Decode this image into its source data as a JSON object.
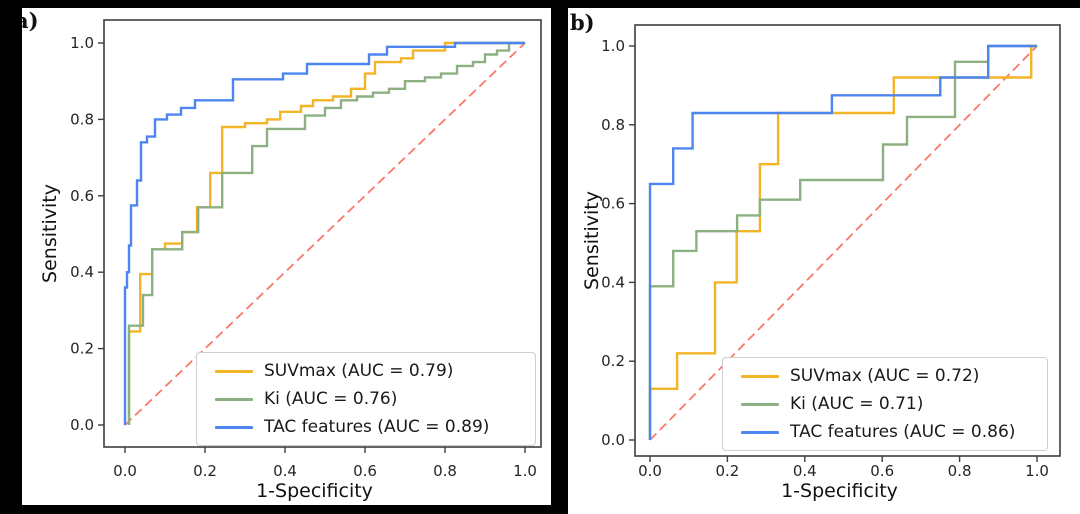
{
  "canvas": {
    "background": "#000000",
    "panel_background": "#ffffff",
    "spine_color": "#3d3d3d",
    "tick_text_color": "#262626"
  },
  "chart_data": [
    {
      "type": "line",
      "panel_label": "a)",
      "xlabel": "1-Specificity",
      "ylabel": "Sensitivity",
      "xlim": [
        0,
        1
      ],
      "ylim": [
        0,
        1
      ],
      "grid": false,
      "legend_position": "lower right",
      "xtick_labels": [
        "0.0",
        "0.2",
        "0.4",
        "0.6",
        "0.8",
        "1.0"
      ],
      "ytick_labels": [
        "0.0",
        "0.2",
        "0.4",
        "0.6",
        "0.8",
        "1.0"
      ],
      "diagonal": {
        "name": "chance-line",
        "color": "#FA7869",
        "style": "dashed",
        "from": [
          0,
          0
        ],
        "to": [
          1,
          1
        ]
      },
      "series": [
        {
          "name": "SUVmax",
          "auc": 0.79,
          "legend_label": "SUVmax (AUC = 0.79)",
          "color": "#F3B426",
          "points": [
            [
              0.01,
              0
            ],
            [
              0.01,
              0.245
            ],
            [
              0.038,
              0.245
            ],
            [
              0.038,
              0.395
            ],
            [
              0.068,
              0.395
            ],
            [
              0.068,
              0.46
            ],
            [
              0.1,
              0.46
            ],
            [
              0.1,
              0.475
            ],
            [
              0.143,
              0.475
            ],
            [
              0.143,
              0.505
            ],
            [
              0.18,
              0.505
            ],
            [
              0.18,
              0.57
            ],
            [
              0.213,
              0.57
            ],
            [
              0.213,
              0.66
            ],
            [
              0.243,
              0.66
            ],
            [
              0.243,
              0.78
            ],
            [
              0.3,
              0.78
            ],
            [
              0.3,
              0.79
            ],
            [
              0.355,
              0.79
            ],
            [
              0.355,
              0.8
            ],
            [
              0.388,
              0.8
            ],
            [
              0.388,
              0.82
            ],
            [
              0.44,
              0.82
            ],
            [
              0.44,
              0.835
            ],
            [
              0.47,
              0.835
            ],
            [
              0.47,
              0.85
            ],
            [
              0.52,
              0.85
            ],
            [
              0.52,
              0.86
            ],
            [
              0.565,
              0.86
            ],
            [
              0.565,
              0.88
            ],
            [
              0.6,
              0.88
            ],
            [
              0.6,
              0.92
            ],
            [
              0.625,
              0.92
            ],
            [
              0.625,
              0.95
            ],
            [
              0.69,
              0.95
            ],
            [
              0.69,
              0.96
            ],
            [
              0.72,
              0.96
            ],
            [
              0.72,
              0.98
            ],
            [
              0.8,
              0.98
            ],
            [
              0.8,
              1.0
            ],
            [
              1,
              1
            ]
          ]
        },
        {
          "name": "Ki",
          "auc": 0.76,
          "legend_label": "Ki (AUC = 0.76)",
          "color": "#8CB082",
          "points": [
            [
              0.01,
              0
            ],
            [
              0.01,
              0.26
            ],
            [
              0.045,
              0.26
            ],
            [
              0.045,
              0.34
            ],
            [
              0.068,
              0.34
            ],
            [
              0.068,
              0.46
            ],
            [
              0.143,
              0.46
            ],
            [
              0.143,
              0.505
            ],
            [
              0.183,
              0.505
            ],
            [
              0.183,
              0.57
            ],
            [
              0.243,
              0.57
            ],
            [
              0.243,
              0.66
            ],
            [
              0.318,
              0.66
            ],
            [
              0.318,
              0.73
            ],
            [
              0.355,
              0.73
            ],
            [
              0.355,
              0.775
            ],
            [
              0.45,
              0.775
            ],
            [
              0.45,
              0.81
            ],
            [
              0.5,
              0.81
            ],
            [
              0.5,
              0.83
            ],
            [
              0.54,
              0.83
            ],
            [
              0.54,
              0.85
            ],
            [
              0.58,
              0.85
            ],
            [
              0.58,
              0.86
            ],
            [
              0.62,
              0.86
            ],
            [
              0.62,
              0.87
            ],
            [
              0.66,
              0.87
            ],
            [
              0.66,
              0.88
            ],
            [
              0.7,
              0.88
            ],
            [
              0.7,
              0.9
            ],
            [
              0.75,
              0.9
            ],
            [
              0.75,
              0.91
            ],
            [
              0.79,
              0.91
            ],
            [
              0.79,
              0.92
            ],
            [
              0.83,
              0.92
            ],
            [
              0.83,
              0.94
            ],
            [
              0.87,
              0.94
            ],
            [
              0.87,
              0.95
            ],
            [
              0.9,
              0.95
            ],
            [
              0.9,
              0.97
            ],
            [
              0.93,
              0.97
            ],
            [
              0.93,
              0.98
            ],
            [
              0.96,
              0.98
            ],
            [
              0.96,
              1.0
            ],
            [
              1,
              1
            ]
          ]
        },
        {
          "name": "TAC features",
          "auc": 0.89,
          "legend_label": "TAC features (AUC = 0.89)",
          "color": "#4D86F0",
          "points": [
            [
              0,
              0
            ],
            [
              0,
              0.36
            ],
            [
              0.005,
              0.36
            ],
            [
              0.005,
              0.4
            ],
            [
              0.01,
              0.4
            ],
            [
              0.01,
              0.47
            ],
            [
              0.015,
              0.47
            ],
            [
              0.015,
              0.575
            ],
            [
              0.03,
              0.575
            ],
            [
              0.03,
              0.64
            ],
            [
              0.04,
              0.64
            ],
            [
              0.04,
              0.74
            ],
            [
              0.055,
              0.74
            ],
            [
              0.055,
              0.755
            ],
            [
              0.075,
              0.755
            ],
            [
              0.075,
              0.8
            ],
            [
              0.105,
              0.8
            ],
            [
              0.105,
              0.8125
            ],
            [
              0.14,
              0.8125
            ],
            [
              0.14,
              0.83
            ],
            [
              0.175,
              0.83
            ],
            [
              0.175,
              0.85
            ],
            [
              0.27,
              0.85
            ],
            [
              0.27,
              0.905
            ],
            [
              0.395,
              0.905
            ],
            [
              0.395,
              0.92
            ],
            [
              0.455,
              0.92
            ],
            [
              0.455,
              0.945
            ],
            [
              0.61,
              0.945
            ],
            [
              0.61,
              0.97
            ],
            [
              0.655,
              0.97
            ],
            [
              0.655,
              0.99
            ],
            [
              0.825,
              0.99
            ],
            [
              0.825,
              1.0
            ],
            [
              1,
              1
            ]
          ]
        }
      ]
    },
    {
      "type": "line",
      "panel_label": "b)",
      "xlabel": "1-Specificity",
      "ylabel": "Sensitivity",
      "xlim": [
        0,
        1
      ],
      "ylim": [
        0,
        1
      ],
      "grid": false,
      "legend_position": "lower right",
      "xtick_labels": [
        "0.0",
        "0.2",
        "0.4",
        "0.6",
        "0.8",
        "1.0"
      ],
      "ytick_labels": [
        "0.0",
        "0.2",
        "0.4",
        "0.6",
        "0.8",
        "1.0"
      ],
      "diagonal": {
        "name": "chance-line",
        "color": "#FA7869",
        "style": "dashed",
        "from": [
          0,
          0
        ],
        "to": [
          1,
          1
        ]
      },
      "series": [
        {
          "name": "SUVmax",
          "auc": 0.72,
          "legend_label": "SUVmax (AUC = 0.72)",
          "color": "#F3B426",
          "points": [
            [
              0,
              0
            ],
            [
              0,
              0.13
            ],
            [
              0.07,
              0.13
            ],
            [
              0.07,
              0.22
            ],
            [
              0.168,
              0.22
            ],
            [
              0.168,
              0.4
            ],
            [
              0.224,
              0.4
            ],
            [
              0.224,
              0.53
            ],
            [
              0.284,
              0.53
            ],
            [
              0.284,
              0.7
            ],
            [
              0.331,
              0.7
            ],
            [
              0.331,
              0.83
            ],
            [
              0.63,
              0.83
            ],
            [
              0.63,
              0.92
            ],
            [
              0.985,
              0.92
            ],
            [
              0.985,
              1.0
            ],
            [
              1,
              1
            ]
          ]
        },
        {
          "name": "Ki",
          "auc": 0.71,
          "legend_label": "Ki (AUC = 0.71)",
          "color": "#8CB082",
          "points": [
            [
              0,
              0
            ],
            [
              0,
              0.39
            ],
            [
              0.06,
              0.39
            ],
            [
              0.06,
              0.48
            ],
            [
              0.12,
              0.48
            ],
            [
              0.12,
              0.53
            ],
            [
              0.225,
              0.53
            ],
            [
              0.225,
              0.57
            ],
            [
              0.284,
              0.57
            ],
            [
              0.284,
              0.61
            ],
            [
              0.388,
              0.61
            ],
            [
              0.388,
              0.66
            ],
            [
              0.602,
              0.66
            ],
            [
              0.602,
              0.75
            ],
            [
              0.664,
              0.75
            ],
            [
              0.664,
              0.82
            ],
            [
              0.788,
              0.82
            ],
            [
              0.788,
              0.96
            ],
            [
              0.874,
              0.96
            ],
            [
              0.874,
              1.0
            ],
            [
              1,
              1
            ]
          ]
        },
        {
          "name": "TAC features",
          "auc": 0.86,
          "legend_label": "TAC features (AUC = 0.86)",
          "color": "#4D86F0",
          "points": [
            [
              0,
              0
            ],
            [
              0,
              0.65
            ],
            [
              0.06,
              0.65
            ],
            [
              0.06,
              0.74
            ],
            [
              0.11,
              0.74
            ],
            [
              0.11,
              0.83
            ],
            [
              0.47,
              0.83
            ],
            [
              0.47,
              0.875
            ],
            [
              0.75,
              0.875
            ],
            [
              0.75,
              0.92
            ],
            [
              0.874,
              0.92
            ],
            [
              0.874,
              1.0
            ],
            [
              1,
              1
            ]
          ]
        }
      ]
    }
  ]
}
